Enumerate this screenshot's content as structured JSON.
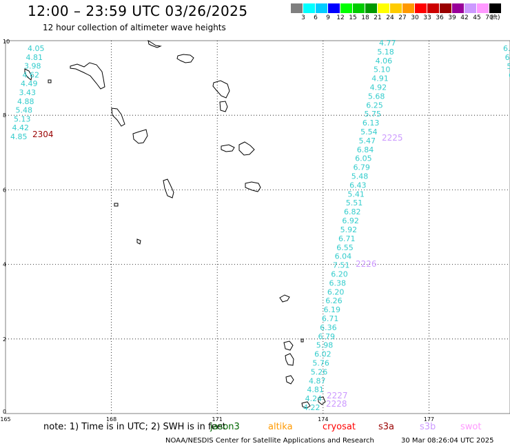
{
  "header": {
    "title": "12:00 – 23:59 UTC 03/26/2025",
    "subtitle": "12 hour collection of altimeter wave heights"
  },
  "colorbar": {
    "unit": "(ft)",
    "bins": [
      {
        "label": "3",
        "color": "#7f7f7f"
      },
      {
        "label": "6",
        "color": "#00ffff"
      },
      {
        "label": "9",
        "color": "#00ccff"
      },
      {
        "label": "12",
        "color": "#0000ff"
      },
      {
        "label": "15",
        "color": "#00ff00"
      },
      {
        "label": "18",
        "color": "#00cc00"
      },
      {
        "label": "21",
        "color": "#009900"
      },
      {
        "label": "24",
        "color": "#ffff00"
      },
      {
        "label": "27",
        "color": "#ffcc00"
      },
      {
        "label": "30",
        "color": "#ff9900"
      },
      {
        "label": "33",
        "color": "#ff0000"
      },
      {
        "label": "36",
        "color": "#cc0000"
      },
      {
        "label": "39",
        "color": "#990000"
      },
      {
        "label": "42",
        "color": "#990099"
      },
      {
        "label": "45",
        "color": "#cc99ff"
      },
      {
        "label": "70",
        "color": "#ff99ff"
      },
      {
        "label": "",
        "color": "#000000"
      }
    ]
  },
  "map": {
    "lon_range": [
      165,
      177
    ],
    "lat_range": [
      0,
      10
    ],
    "lon_ticks": [
      "165",
      "168",
      "171",
      "174",
      "177"
    ],
    "lat_ticks": [
      "0",
      "2",
      "4",
      "6",
      "8",
      "10"
    ],
    "grid": "dotted"
  },
  "tracks": [
    {
      "id": "track-west",
      "color": "#33cccc",
      "points": [
        {
          "label": "4.05"
        },
        {
          "label": "4.81"
        },
        {
          "label": "3.98"
        },
        {
          "label": "4.62"
        },
        {
          "label": "4.49"
        },
        {
          "label": "3.43"
        },
        {
          "label": "4.88"
        },
        {
          "label": "5.48"
        },
        {
          "label": "5.13"
        },
        {
          "label": "4.42"
        },
        {
          "label": "4.85"
        }
      ]
    },
    {
      "id": "track-east",
      "color": "#33cccc",
      "points": [
        {
          "label": "4.77"
        },
        {
          "label": "5.18"
        },
        {
          "label": "4.06"
        },
        {
          "label": "5.10"
        },
        {
          "label": "4.91"
        },
        {
          "label": "4.92"
        },
        {
          "label": "5.68"
        },
        {
          "label": "6.25"
        },
        {
          "label": "5.75"
        },
        {
          "label": "6.13"
        },
        {
          "label": "5.54"
        },
        {
          "label": "5.47"
        },
        {
          "label": "6.84"
        },
        {
          "label": "6.05"
        },
        {
          "label": "6.79"
        },
        {
          "label": "5.48"
        },
        {
          "label": "6.43"
        },
        {
          "label": "5.41"
        },
        {
          "label": "5.51"
        },
        {
          "label": "6.82"
        },
        {
          "label": "6.92"
        },
        {
          "label": "5.92"
        },
        {
          "label": "6.71"
        },
        {
          "label": "6.55"
        },
        {
          "label": "6.04"
        },
        {
          "label": "7.51"
        },
        {
          "label": "6.20"
        },
        {
          "label": "6.38"
        },
        {
          "label": "6.20"
        },
        {
          "label": "6.26"
        },
        {
          "label": "6.19"
        },
        {
          "label": "6.71"
        },
        {
          "label": "6.36"
        },
        {
          "label": "6.79"
        },
        {
          "label": "5.98"
        },
        {
          "label": "6.02"
        },
        {
          "label": "5.76"
        },
        {
          "label": "5.26"
        },
        {
          "label": "4.87"
        },
        {
          "label": "4.81"
        },
        {
          "label": "4.24"
        },
        {
          "label": "4.22"
        }
      ]
    },
    {
      "id": "track-far-east",
      "color": "#33cccc",
      "points": [
        {
          "label": "6."
        },
        {
          "label": "6"
        },
        {
          "label": "5"
        },
        {
          "label": "6"
        }
      ]
    }
  ],
  "pass_labels": [
    {
      "text": "2304",
      "color": "#990000"
    },
    {
      "text": "2225",
      "color": "#cc99ff"
    },
    {
      "text": "2226",
      "color": "#cc99ff"
    },
    {
      "text": "2227",
      "color": "#cc99ff"
    },
    {
      "text": "2228",
      "color": "#cc99ff"
    }
  ],
  "footer": {
    "note": "note:  1) Time is in UTC; 2) SWH is in feet",
    "satellites": [
      {
        "name": "jason3",
        "color": "#006600"
      },
      {
        "name": "altika",
        "color": "#ff9900"
      },
      {
        "name": "cryosat",
        "color": "#ff0000"
      },
      {
        "name": "s3a",
        "color": "#990000"
      },
      {
        "name": "s3b",
        "color": "#cc99ff"
      },
      {
        "name": "swot",
        "color": "#ff99ff"
      }
    ],
    "credit": "NOAA/NESDIS Center for Satellite Applications and Research",
    "date": "30 Mar 08:26:04 UTC 2025"
  }
}
